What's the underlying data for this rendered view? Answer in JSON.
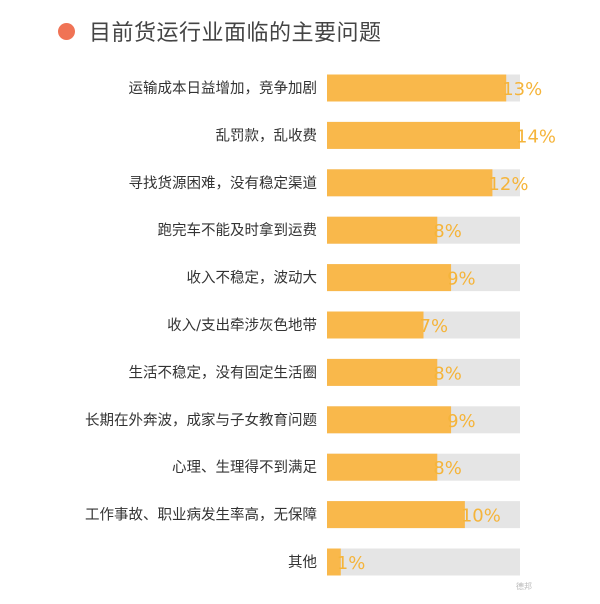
{
  "header": {
    "title": "目前货运行业面临的主要问题",
    "dot_color": "#f07355"
  },
  "chart_data": {
    "type": "bar",
    "orientation": "horizontal",
    "title": "目前货运行业面临的主要问题",
    "categories": [
      "运输成本日益增加，竞争加剧",
      "乱罚款，乱收费",
      "寻找货源困难，没有稳定渠道",
      "跑完车不能及时拿到运费",
      "收入不稳定，波动大",
      "收入/支出牵涉灰色地带",
      "生活不稳定，没有固定生活圈",
      "长期在外奔波，成家与子女教育问题",
      "心理、生理得不到满足",
      "工作事故、职业病发生率高，无保障",
      "其他"
    ],
    "values": [
      13,
      14,
      12,
      8,
      9,
      7,
      8,
      9,
      8,
      10,
      1
    ],
    "value_labels": [
      "13%",
      "14%",
      "12%",
      "8%",
      "9%",
      "7%",
      "8%",
      "9%",
      "8%",
      "10%",
      "1%"
    ],
    "xlim": [
      0,
      14
    ],
    "bar_color": "#f9b84b",
    "track_color": "#e5e5e5",
    "value_label_color": "#f5b43a",
    "grid": false,
    "legend": "none"
  },
  "watermark": "德邦"
}
